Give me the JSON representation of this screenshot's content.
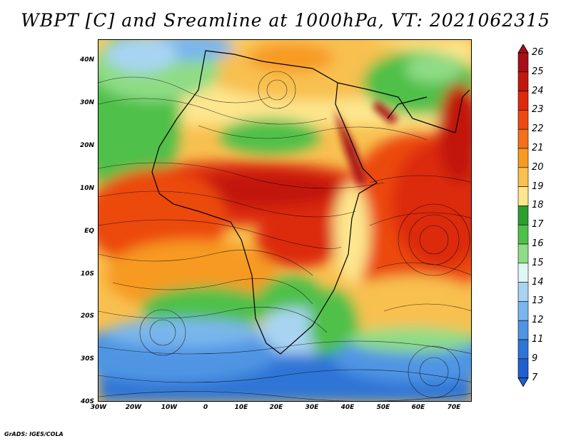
{
  "title": "WBPT [C] and Sreamline at 1000hPa, VT: 2021062315",
  "credit": "GrADS: IGES/COLA",
  "lat_labels": [
    "40N",
    "30N",
    "20N",
    "10N",
    "EQ",
    "10S",
    "20S",
    "30S",
    "40S"
  ],
  "lon_labels": [
    "30W",
    "20W",
    "10W",
    "0",
    "10E",
    "20E",
    "30E",
    "40E",
    "50E",
    "60E",
    "70E"
  ],
  "colorbar": {
    "labels": [
      "26",
      "25",
      "24",
      "23",
      "22",
      "21",
      "20",
      "19",
      "18",
      "17",
      "16",
      "15",
      "14",
      "13",
      "12",
      "11",
      "9",
      "7"
    ],
    "colors": [
      "#a50f15",
      "#c2170f",
      "#dc2a0c",
      "#ec4a10",
      "#f4701a",
      "#f79a22",
      "#f8c050",
      "#fde68e",
      "#2e9e2e",
      "#4fc04a",
      "#8fdc86",
      "#dff7f5",
      "#a8d4f2",
      "#7ab6ec",
      "#4f95e3",
      "#2f75d6",
      "#1f5fce"
    ]
  },
  "wbpt_colors": {
    "cold": "#2f75d6",
    "cool": "#7ab6ec",
    "green": "#4fc04a",
    "yellow": "#fde68e",
    "orange": "#f79a22",
    "red": "#dc2a0c",
    "darkred": "#a50f15"
  }
}
